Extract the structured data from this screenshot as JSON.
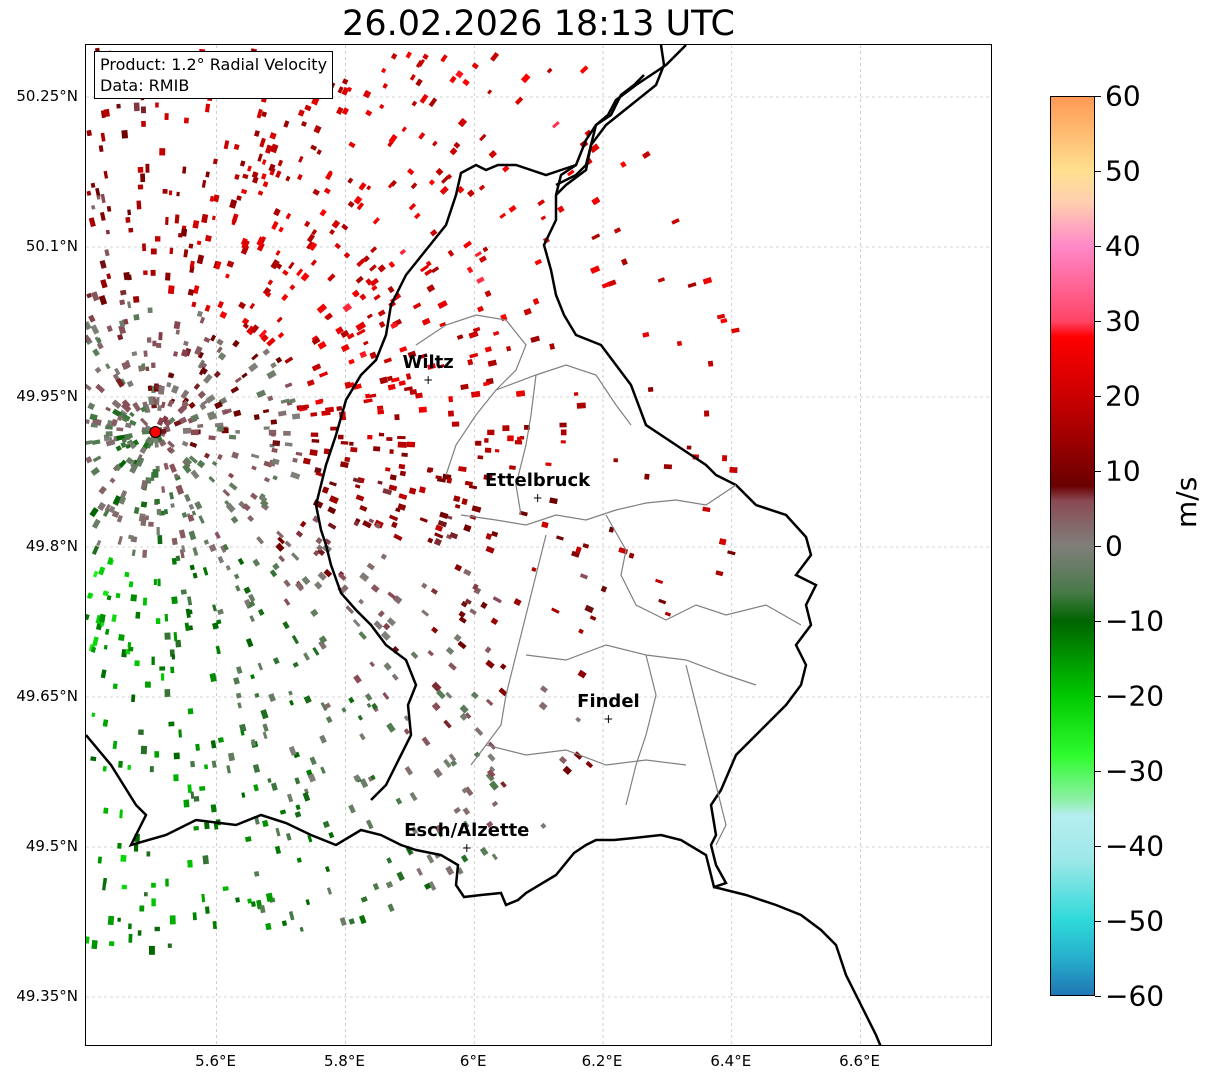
{
  "title": "26.02.2026 18:13 UTC",
  "info": {
    "product": "Product: 1.2° Radial Velocity",
    "data": "Data: RMIB"
  },
  "map": {
    "extent_lon": [
      5.4,
      6.8
    ],
    "extent_lat": [
      49.3,
      50.3
    ],
    "lat_ticks": [
      {
        "value": 50.25,
        "label": "50.25°N"
      },
      {
        "value": 50.1,
        "label": "50.1°N"
      },
      {
        "value": 49.95,
        "label": "49.95°N"
      },
      {
        "value": 49.8,
        "label": "49.8°N"
      },
      {
        "value": 49.65,
        "label": "49.65°N"
      },
      {
        "value": 49.5,
        "label": "49.5°N"
      },
      {
        "value": 49.35,
        "label": "49.35°N"
      }
    ],
    "lon_ticks": [
      {
        "value": 5.6,
        "label": "5.6°E"
      },
      {
        "value": 5.8,
        "label": "5.8°E"
      },
      {
        "value": 6.0,
        "label": "6°E"
      },
      {
        "value": 6.2,
        "label": "6.2°E"
      },
      {
        "value": 6.4,
        "label": "6.4°E"
      },
      {
        "value": 6.6,
        "label": "6.6°E"
      }
    ],
    "radar_site": {
      "lon": 5.505,
      "lat": 49.915
    },
    "cities": [
      {
        "name": "Wiltz",
        "lon": 5.93,
        "lat": 49.966
      },
      {
        "name": "Ettelbruck",
        "lon": 6.1,
        "lat": 49.848
      },
      {
        "name": "Findel",
        "lon": 6.21,
        "lat": 49.627
      },
      {
        "name": "Esch/Alzette",
        "lon": 5.99,
        "lat": 49.498
      }
    ],
    "grid": true,
    "border_color": "#000000",
    "canton_color": "#808080",
    "radar_marker_color": "#ff0000"
  },
  "colorbar": {
    "label": "m/s",
    "min": -60,
    "max": 60,
    "ticks": [
      {
        "value": 60,
        "label": "60"
      },
      {
        "value": 50,
        "label": "50"
      },
      {
        "value": 40,
        "label": "40"
      },
      {
        "value": 30,
        "label": "30"
      },
      {
        "value": 20,
        "label": "20"
      },
      {
        "value": 10,
        "label": "10"
      },
      {
        "value": 0,
        "label": "0"
      },
      {
        "value": -10,
        "label": "−10"
      },
      {
        "value": -20,
        "label": "−20"
      },
      {
        "value": -30,
        "label": "−30"
      },
      {
        "value": -40,
        "label": "−40"
      },
      {
        "value": -50,
        "label": "−50"
      },
      {
        "value": -60,
        "label": "−60"
      }
    ],
    "stops": [
      {
        "value": -60,
        "color": "#1f77b4"
      },
      {
        "value": -55,
        "color": "#26b0cc"
      },
      {
        "value": -50,
        "color": "#2fd9d9"
      },
      {
        "value": -42,
        "color": "#9de8e8"
      },
      {
        "value": -36,
        "color": "#b6eef0"
      },
      {
        "value": -34,
        "color": "#8ff0a8"
      },
      {
        "value": -28,
        "color": "#2efc2e"
      },
      {
        "value": -20,
        "color": "#00c800"
      },
      {
        "value": -10,
        "color": "#006400"
      },
      {
        "value": -6,
        "color": "#4a7a4a"
      },
      {
        "value": 0,
        "color": "#807f7a"
      },
      {
        "value": 6,
        "color": "#8a4a55"
      },
      {
        "value": 8,
        "color": "#6b0000"
      },
      {
        "value": 20,
        "color": "#cc0000"
      },
      {
        "value": 28,
        "color": "#ff0000"
      },
      {
        "value": 30,
        "color": "#ff4466"
      },
      {
        "value": 40,
        "color": "#ff88c8"
      },
      {
        "value": 46,
        "color": "#ffd0b0"
      },
      {
        "value": 50,
        "color": "#ffe090"
      },
      {
        "value": 60,
        "color": "#ff9955"
      }
    ]
  }
}
